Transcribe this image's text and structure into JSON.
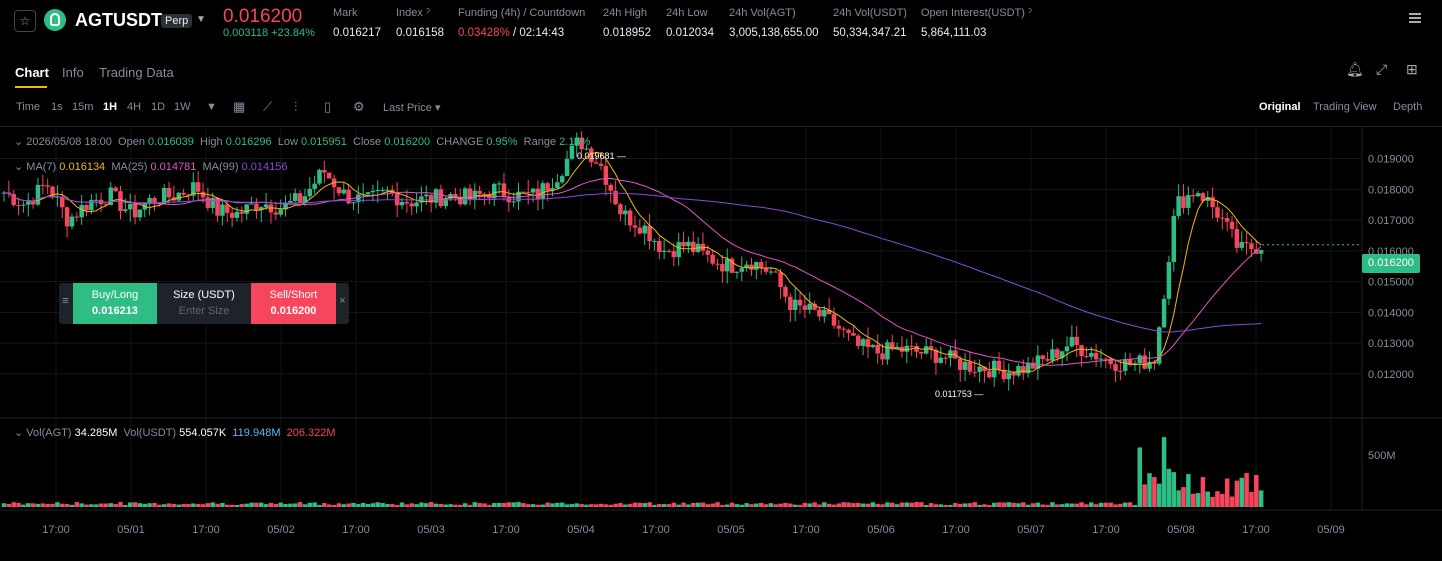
{
  "header": {
    "symbol": "AGTUSDT",
    "badge": "Perp",
    "price": "0.016200",
    "change": "0.003118 +23.84%",
    "stats": [
      {
        "label": "Mark",
        "value": "0.016217"
      },
      {
        "label": "Index ˀ",
        "value": "0.016158"
      },
      {
        "label": "Funding (4h) / Countdown",
        "value_red": "0.03428%",
        "value": " / 02:14:43"
      },
      {
        "label": "24h High",
        "value": "0.018952"
      },
      {
        "label": "24h Low",
        "value": "0.012034"
      },
      {
        "label": "24h Vol(AGT)",
        "value": "3,005,138,655.00"
      },
      {
        "label": "24h Vol(USDT)",
        "value": "50,334,347.21"
      },
      {
        "label": "Open Interest(USDT) ˀ",
        "value": "5,864,111.03"
      }
    ]
  },
  "tabs": [
    "Chart",
    "Info",
    "Trading Data"
  ],
  "toolbar": {
    "time_label": "Time",
    "intervals": [
      "1s",
      "15m",
      "1H",
      "4H",
      "1D",
      "1W"
    ],
    "active_interval": "1H",
    "last_price": "Last Price",
    "views": [
      "Original",
      "Trading View",
      "Depth"
    ]
  },
  "legend": {
    "date": "2026/05/08 18:00",
    "open_l": "Open",
    "open": "0.016039",
    "high_l": "High",
    "high": "0.016296",
    "low_l": "Low",
    "low": "0.015951",
    "close_l": "Close",
    "close": "0.016200",
    "change_l": "CHANGE",
    "change": "0.95%",
    "range_l": "Range",
    "range": "2.15%",
    "ma7_l": "MA(7)",
    "ma7": "0.016134",
    "ma25_l": "MA(25)",
    "ma25": "0.014781",
    "ma99_l": "MA(99)",
    "ma99": "0.014156",
    "vol_l": "Vol(AGT)",
    "vol": "34.285M",
    "volu_l": "Vol(USDT)",
    "volu": "554.057K",
    "volma1": "119.948M",
    "volma2": "206.322M"
  },
  "widget": {
    "buy_l": "Buy/Long",
    "buy": "0.016213",
    "size_l": "Size (USDT)",
    "size_ph": "Enter Size",
    "sell_l": "Sell/Short",
    "sell": "0.016200"
  },
  "current_price_tag": "0.016200",
  "annotations": {
    "high": "0.019681",
    "low": "0.011753"
  },
  "colors": {
    "up": "#2ebd85",
    "down": "#f6465d",
    "ma7": "#f0b90b",
    "ma25": "#e056c8",
    "ma99": "#8a4bd6",
    "accent": "#f0b90b"
  },
  "chart_data": {
    "type": "candlestick",
    "y_ticks": [
      "0.019000",
      "0.018000",
      "0.017000",
      "0.016000",
      "0.015000",
      "0.014000",
      "0.013000",
      "0.012000"
    ],
    "ylim": [
      0.0106,
      0.0197
    ],
    "x_ticks": [
      "17:00",
      "05/01",
      "17:00",
      "05/02",
      "17:00",
      "05/03",
      "17:00",
      "05/04",
      "17:00",
      "05/05",
      "17:00",
      "05/06",
      "17:00",
      "05/07",
      "17:00",
      "05/08",
      "17:00",
      "05/09"
    ],
    "vol_tick": "500M",
    "close_path": [
      0.0179,
      0.0175,
      0.0182,
      0.017,
      0.0176,
      0.0178,
      0.0172,
      0.0177,
      0.0178,
      0.0181,
      0.0173,
      0.0172,
      0.0176,
      0.0174,
      0.0177,
      0.0186,
      0.0178,
      0.0176,
      0.0179,
      0.0176,
      0.0177,
      0.0178,
      0.0177,
      0.018,
      0.0178,
      0.0178,
      0.0185,
      0.0196,
      0.0188,
      0.0172,
      0.0168,
      0.016,
      0.0162,
      0.0158,
      0.0155,
      0.0157,
      0.0153,
      0.0142,
      0.014,
      0.0136,
      0.0129,
      0.0127,
      0.0128,
      0.0127,
      0.0126,
      0.0123,
      0.0122,
      0.0121,
      0.0122,
      0.0125,
      0.013,
      0.0127,
      0.0124,
      0.0123,
      0.0125,
      0.0175,
      0.018,
      0.0172,
      0.016,
      0.0162
    ]
  }
}
